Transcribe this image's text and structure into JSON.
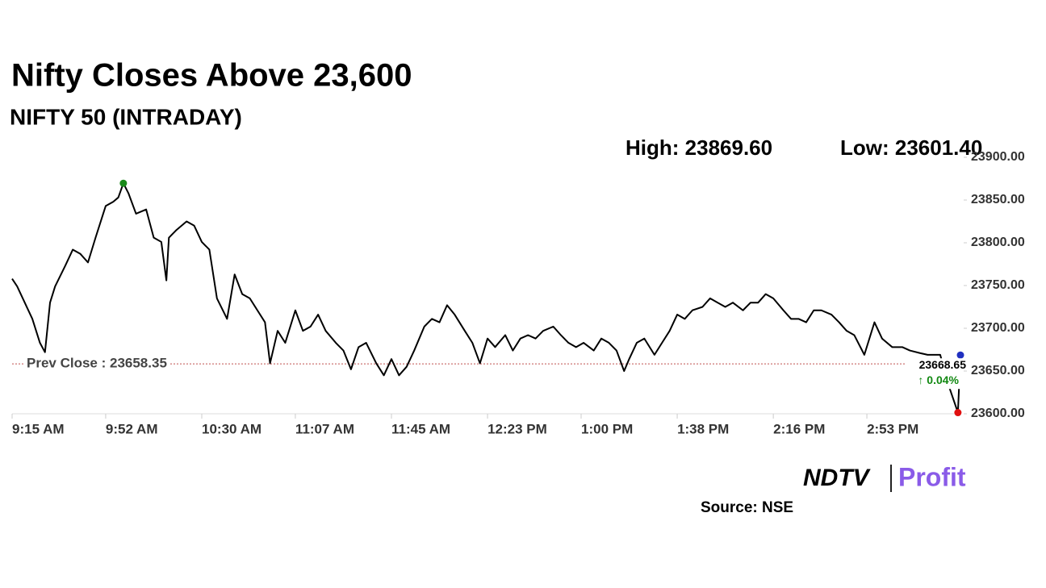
{
  "chart_data": {
    "type": "line",
    "title": "Nifty Closes Above 23,600",
    "subtitle": "NIFTY 50 (INTRADAY)",
    "high_label": "High: 23869.60",
    "low_label": "Low: 23601.40",
    "prev_close": {
      "value": 23658.35,
      "label": "Prev Close : 23658.35",
      "color": "#c0504d"
    },
    "close_label": "23668.65",
    "change_label": "↑ 0.04%",
    "high_color": "#1a8a1a",
    "low_color": "#e01010",
    "last_color": "#2030c0",
    "source": "Source: NSE",
    "logo": {
      "left": "NDTV",
      "right": "Profit"
    },
    "xlim": [
      "09:15",
      "15:30"
    ],
    "xticks": [
      {
        "value": "09:15",
        "label": "9:15 AM"
      },
      {
        "value": "09:52",
        "label": "9:52 AM"
      },
      {
        "value": "10:30",
        "label": "10:30 AM"
      },
      {
        "value": "11:07",
        "label": "11:07 AM"
      },
      {
        "value": "11:45",
        "label": "11:45 AM"
      },
      {
        "value": "12:23",
        "label": "12:23 PM"
      },
      {
        "value": "13:00",
        "label": "1:00 PM"
      },
      {
        "value": "13:38",
        "label": "1:38 PM"
      },
      {
        "value": "14:16",
        "label": "2:16 PM"
      },
      {
        "value": "14:53",
        "label": "2:53 PM"
      }
    ],
    "ylim": [
      23600,
      23900
    ],
    "yticks": [
      {
        "value": 23600,
        "label": "23600.00"
      },
      {
        "value": 23650,
        "label": "23650.00"
      },
      {
        "value": 23700,
        "label": "23700.00"
      },
      {
        "value": 23750,
        "label": "23750.00"
      },
      {
        "value": 23800,
        "label": "23800.00"
      },
      {
        "value": 23850,
        "label": "23850.00"
      },
      {
        "value": 23900,
        "label": "23900.00"
      }
    ],
    "x": [
      "09:15",
      "09:17",
      "09:20",
      "09:23",
      "09:26",
      "09:28",
      "09:30",
      "09:32",
      "09:36",
      "09:39",
      "09:42",
      "09:45",
      "09:48",
      "09:52",
      "09:55",
      "09:57",
      "09:59",
      "10:01",
      "10:04",
      "10:08",
      "10:11",
      "10:14",
      "10:16",
      "10:17",
      "10:20",
      "10:24",
      "10:27",
      "10:30",
      "10:33",
      "10:36",
      "10:40",
      "10:43",
      "10:46",
      "10:49",
      "10:52",
      "10:55",
      "10:57",
      "11:00",
      "11:03",
      "11:07",
      "11:10",
      "11:13",
      "11:16",
      "11:19",
      "11:23",
      "11:26",
      "11:29",
      "11:32",
      "11:35",
      "11:39",
      "11:42",
      "11:45",
      "11:48",
      "11:51",
      "11:54",
      "11:58",
      "12:01",
      "12:04",
      "12:07",
      "12:10",
      "12:14",
      "12:17",
      "12:20",
      "12:23",
      "12:26",
      "12:30",
      "12:33",
      "12:36",
      "12:39",
      "12:42",
      "12:45",
      "12:49",
      "12:52",
      "12:55",
      "12:58",
      "13:01",
      "13:05",
      "13:08",
      "13:11",
      "13:14",
      "13:17",
      "13:19",
      "13:22",
      "13:25",
      "13:29",
      "13:32",
      "13:35",
      "13:38",
      "13:41",
      "13:44",
      "13:48",
      "13:51",
      "13:54",
      "13:57",
      "14:00",
      "14:04",
      "14:07",
      "14:10",
      "14:13",
      "14:16",
      "14:20",
      "14:23",
      "14:26",
      "14:29",
      "14:32",
      "14:35",
      "14:39",
      "14:42",
      "14:45",
      "14:48",
      "14:52",
      "14:56",
      "14:59",
      "15:03",
      "15:07",
      "15:10",
      "15:14",
      "15:17",
      "15:22",
      "15:25",
      "15:29",
      "15:30"
    ],
    "series": [
      {
        "name": "NIFTY 50",
        "color": "#000000",
        "values": [
          23758,
          23749,
          23730,
          23711,
          23683,
          23672,
          23730,
          23749,
          23773,
          23792,
          23787,
          23777,
          23806,
          23843,
          23848,
          23853,
          23869.6,
          23858,
          23834,
          23839,
          23806,
          23801,
          23756,
          23806,
          23815,
          23825,
          23820,
          23801,
          23792,
          23735,
          23711,
          23763,
          23740,
          23735,
          23721,
          23707,
          23659,
          23697,
          23683,
          23721,
          23697,
          23702,
          23716,
          23697,
          23683,
          23674,
          23652,
          23678,
          23683,
          23659,
          23645,
          23664,
          23645,
          23655,
          23674,
          23702,
          23711,
          23707,
          23727,
          23716,
          23697,
          23683,
          23659,
          23688,
          23678,
          23692,
          23674,
          23688,
          23692,
          23688,
          23697,
          23702,
          23692,
          23683,
          23678,
          23683,
          23674,
          23688,
          23683,
          23674,
          23650,
          23664,
          23683,
          23688,
          23669,
          23683,
          23697,
          23716,
          23711,
          23721,
          23725,
          23735,
          23730,
          23725,
          23730,
          23721,
          23730,
          23730,
          23740,
          23735,
          23721,
          23711,
          23711,
          23707,
          23721,
          23721,
          23716,
          23707,
          23697,
          23692,
          23669,
          23707,
          23688,
          23678,
          23678,
          23674,
          23671,
          23669,
          23669,
          23636,
          23601.4,
          23668.65
        ]
      }
    ]
  }
}
